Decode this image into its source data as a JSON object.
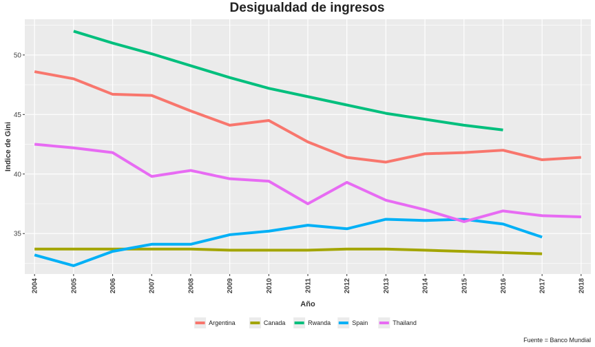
{
  "chart_data": {
    "type": "line",
    "title": "Desigualdad de ingresos",
    "xlabel": "Año",
    "ylabel": "Indice de Gini",
    "caption": "Fuente = Banco Mundial",
    "x": [
      2004,
      2005,
      2006,
      2007,
      2008,
      2009,
      2010,
      2011,
      2012,
      2013,
      2014,
      2015,
      2016,
      2017,
      2018
    ],
    "x_tick_labels": [
      "2004",
      "2005",
      "2006",
      "2007",
      "2008",
      "2009",
      "2010",
      "2011",
      "2012",
      "2013",
      "2014",
      "2015",
      "2016",
      "2017",
      "2018"
    ],
    "y_ticks": [
      35,
      40,
      45,
      50
    ],
    "y_tick_labels": [
      "35",
      "40",
      "45",
      "50"
    ],
    "xlim": [
      2003.75,
      2018.25
    ],
    "ylim": [
      31.6,
      53.0
    ],
    "grid": true,
    "legend_position": "bottom",
    "background": "#EBEBEB",
    "series": [
      {
        "name": "Argentina",
        "color": "#F8766D",
        "values": [
          48.6,
          48.0,
          46.7,
          46.6,
          45.3,
          44.1,
          44.5,
          42.7,
          41.4,
          41.0,
          41.7,
          41.8,
          42.0,
          41.2,
          41.4
        ]
      },
      {
        "name": "Canada",
        "color": "#A3A500",
        "values": [
          33.7,
          33.7,
          33.7,
          33.7,
          33.7,
          33.6,
          33.6,
          33.6,
          33.7,
          33.7,
          33.6,
          33.5,
          33.4,
          33.3,
          null
        ]
      },
      {
        "name": "Rwanda",
        "color": "#00BF7D",
        "values": [
          null,
          52.0,
          51.0,
          50.1,
          49.1,
          48.1,
          47.2,
          46.5,
          45.8,
          45.1,
          44.6,
          44.1,
          43.7,
          null,
          null
        ]
      },
      {
        "name": "Spain",
        "color": "#00B0F6",
        "values": [
          33.2,
          32.3,
          33.5,
          34.1,
          34.1,
          34.9,
          35.2,
          35.7,
          35.4,
          36.2,
          36.1,
          36.2,
          35.8,
          34.7,
          null
        ]
      },
      {
        "name": "Thailand",
        "color": "#E76BF3",
        "values": [
          42.5,
          42.2,
          41.8,
          39.8,
          40.3,
          39.6,
          39.4,
          37.5,
          39.3,
          37.8,
          37.0,
          36.0,
          36.9,
          36.5,
          36.4
        ]
      }
    ]
  }
}
